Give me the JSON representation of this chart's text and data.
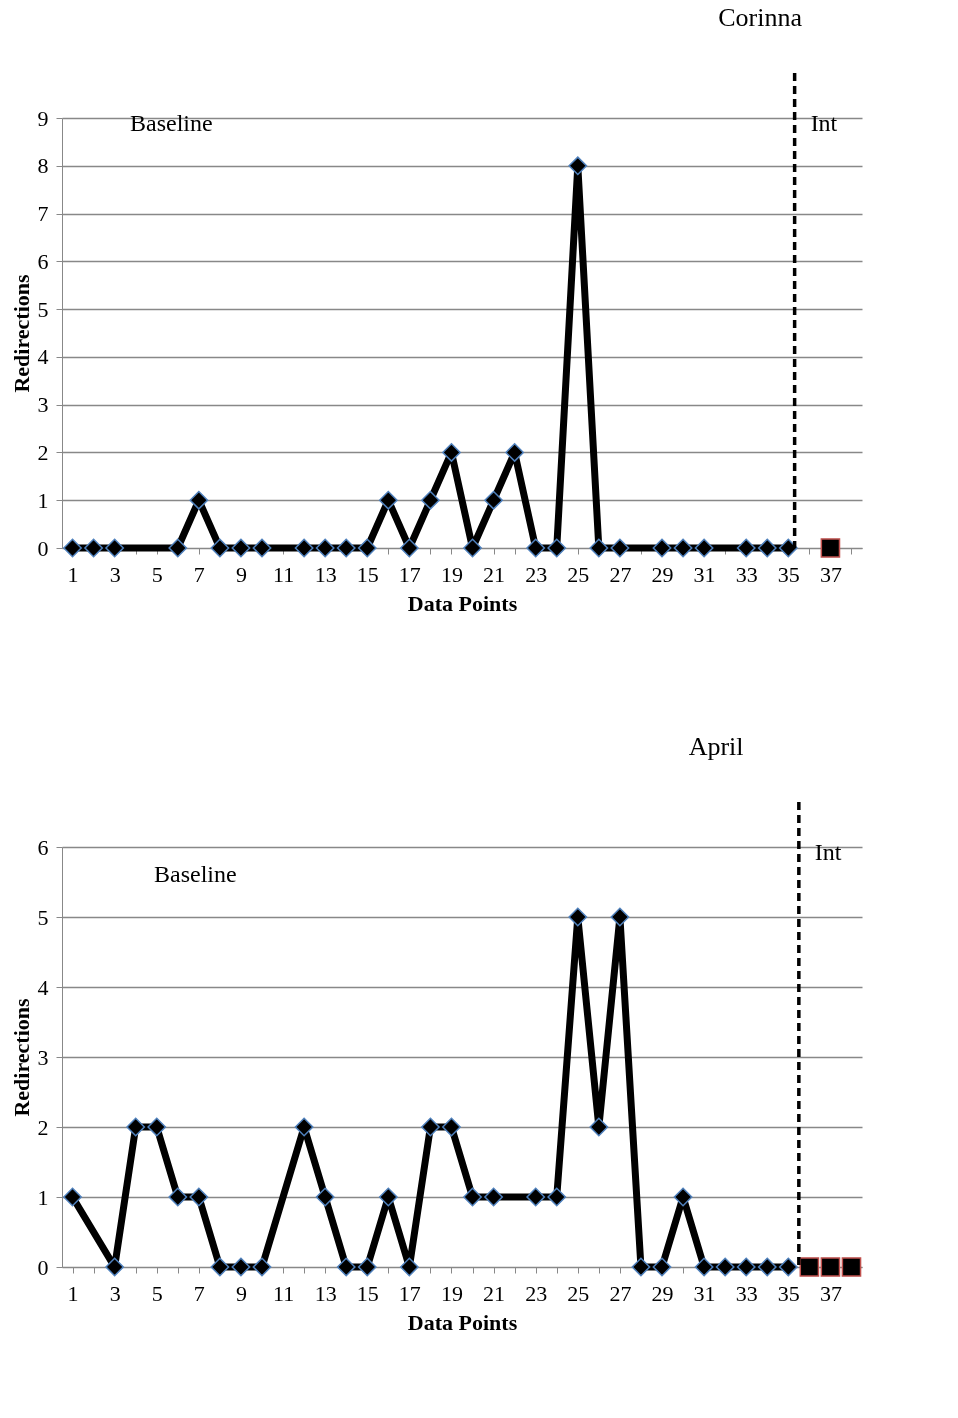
{
  "chart_data": [
    {
      "type": "line",
      "title": "Corinna",
      "xlabel": "Data Points",
      "ylabel": "Redirections",
      "annotations": [
        "Baseline"
      ],
      "xlim": [
        0.5,
        38.5
      ],
      "ylim": [
        0,
        9
      ],
      "yticks": [
        0,
        1,
        2,
        3,
        4,
        5,
        6,
        7,
        8,
        9
      ],
      "xticks": [
        1,
        {
          "value": 2,
          "label": null
        },
        3,
        {
          "value": 4,
          "label": null
        },
        5,
        {
          "value": 6,
          "label": null
        },
        7,
        {
          "value": 8,
          "label": null
        },
        9,
        {
          "value": 10,
          "label": null
        },
        11,
        {
          "value": 12,
          "label": null
        },
        13,
        {
          "value": 14,
          "label": null
        },
        15,
        {
          "value": 16,
          "label": null
        },
        17,
        {
          "value": 18,
          "label": null
        },
        19,
        {
          "value": 20,
          "label": null
        },
        21,
        {
          "value": 22,
          "label": null
        },
        23,
        {
          "value": 24,
          "label": null
        },
        25,
        {
          "value": 26,
          "label": null
        },
        27,
        {
          "value": 28,
          "label": null
        },
        29,
        {
          "value": 30,
          "label": null
        },
        31,
        {
          "value": 32,
          "label": null
        },
        33,
        {
          "value": 34,
          "label": null
        },
        35,
        {
          "value": 36,
          "label": null
        },
        37,
        {
          "value": 38,
          "label": null
        }
      ],
      "grid": "y",
      "legend": false,
      "ref_lines": [
        {
          "axis": "x",
          "value": 35.3,
          "label": "Int",
          "color": "#000000",
          "line_style": "dashed"
        }
      ],
      "series": [
        {
          "color": "#000000",
          "marker": "diamond",
          "x": [
            1,
            2,
            3,
            4,
            5,
            6,
            7,
            8,
            9,
            10,
            11,
            12,
            13,
            14,
            15,
            16,
            17,
            18,
            19,
            20,
            21,
            22,
            23,
            24,
            25,
            26,
            27,
            28,
            29,
            30,
            31,
            32,
            33,
            34,
            35
          ],
          "values": [
            0,
            0,
            0,
            null,
            null,
            0,
            1,
            0,
            0,
            0,
            null,
            0,
            0,
            0,
            0,
            1,
            0,
            1,
            2,
            0,
            1,
            2,
            0,
            0,
            8,
            0,
            0,
            null,
            0,
            0,
            0,
            null,
            0,
            0,
            0
          ]
        },
        {
          "type": "scatter",
          "color": "#000000",
          "marker": "square",
          "x": [
            37
          ],
          "values": [
            0
          ]
        }
      ]
    },
    {
      "type": "line",
      "title": "April",
      "xlabel": "Data Points",
      "ylabel": "Redirections",
      "annotations": [
        "Baseline"
      ],
      "xlim": [
        0.5,
        38.5
      ],
      "ylim": [
        0,
        6
      ],
      "yticks": [
        0,
        1,
        2,
        3,
        4,
        5,
        6
      ],
      "xticks": [
        1,
        {
          "value": 2,
          "label": null
        },
        3,
        {
          "value": 4,
          "label": null
        },
        5,
        {
          "value": 6,
          "label": null
        },
        7,
        {
          "value": 8,
          "label": null
        },
        9,
        {
          "value": 10,
          "label": null
        },
        11,
        {
          "value": 12,
          "label": null
        },
        13,
        {
          "value": 14,
          "label": null
        },
        15,
        {
          "value": 16,
          "label": null
        },
        17,
        {
          "value": 18,
          "label": null
        },
        19,
        {
          "value": 20,
          "label": null
        },
        21,
        {
          "value": 22,
          "label": null
        },
        23,
        {
          "value": 24,
          "label": null
        },
        25,
        {
          "value": 26,
          "label": null
        },
        27,
        {
          "value": 28,
          "label": null
        },
        29,
        {
          "value": 30,
          "label": null
        },
        31,
        {
          "value": 32,
          "label": null
        },
        33,
        {
          "value": 34,
          "label": null
        },
        35,
        {
          "value": 36,
          "label": null
        },
        37,
        {
          "value": 38,
          "label": null
        }
      ],
      "grid": "y",
      "legend": false,
      "ref_lines": [
        {
          "axis": "x",
          "value": 35.5,
          "label": "Int",
          "color": "#000000",
          "line_style": "dashed"
        }
      ],
      "series": [
        {
          "color": "#000000",
          "marker": "diamond",
          "x": [
            1,
            2,
            3,
            4,
            5,
            6,
            7,
            8,
            9,
            10,
            11,
            12,
            13,
            14,
            15,
            16,
            17,
            18,
            19,
            20,
            21,
            22,
            23,
            24,
            25,
            26,
            27,
            28,
            29,
            30,
            31,
            32,
            33,
            34,
            35
          ],
          "values": [
            1,
            null,
            0,
            2,
            2,
            1,
            1,
            0,
            0,
            0,
            null,
            2,
            1,
            0,
            0,
            1,
            0,
            2,
            2,
            1,
            1,
            null,
            1,
            1,
            5,
            2,
            5,
            0,
            0,
            1,
            0,
            0,
            0,
            0,
            0
          ]
        },
        {
          "type": "scatter",
          "color": "#000000",
          "marker": "square",
          "x": [
            36,
            37,
            38
          ],
          "values": [
            0,
            0,
            0
          ]
        }
      ]
    }
  ]
}
